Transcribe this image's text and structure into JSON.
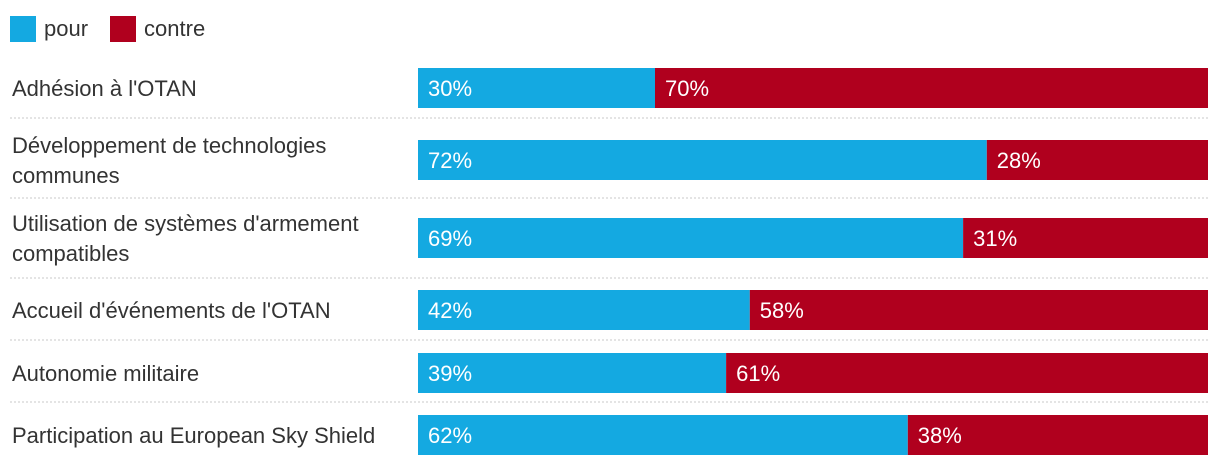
{
  "chart_data": {
    "type": "bar",
    "orientation": "horizontal",
    "stacked": true,
    "percent_stacked": true,
    "legend_position": "top-left",
    "grid": false,
    "xlim": [
      0,
      100
    ],
    "categories": [
      "Adhésion à l'OTAN",
      "Développement de technologies communes",
      "Utilisation de systèmes d'armement compatibles",
      "Accueil d'événements de l'OTAN",
      "Autonomie militaire",
      "Participation au European Sky Shield"
    ],
    "series": [
      {
        "name": "pour",
        "color": "#14a9e1",
        "values": [
          30,
          72,
          69,
          42,
          39,
          62
        ]
      },
      {
        "name": "contre",
        "color": "#b0001e",
        "values": [
          70,
          28,
          31,
          58,
          61,
          38
        ]
      }
    ],
    "value_suffix": "%"
  }
}
